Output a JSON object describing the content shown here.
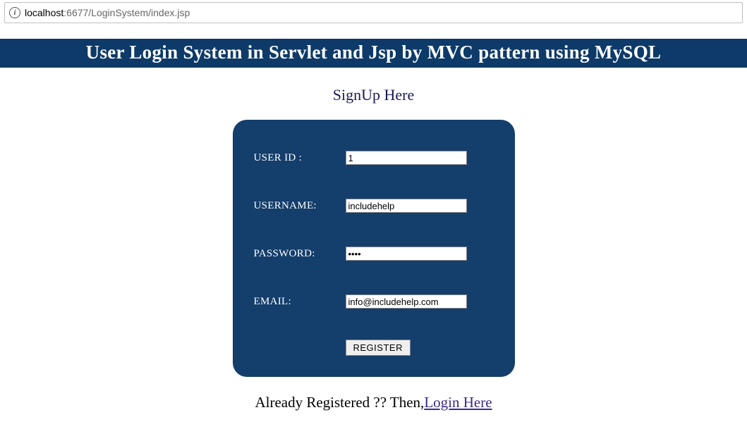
{
  "browser": {
    "url_host": "localhost",
    "url_path": ":6677/LoginSystem/index.jsp"
  },
  "banner": {
    "title": "User Login System in Servlet and Jsp by MVC pattern using MySQL",
    "background_color": "#0d3a68",
    "text_color": "#ffffff"
  },
  "heading": {
    "text": "SignUp Here",
    "color": "#1a1a52"
  },
  "form_card": {
    "background_color": "#143e6b",
    "border_radius": 20
  },
  "form": {
    "user_id": {
      "label": "USER ID :",
      "value": "1"
    },
    "username": {
      "label": "USERNAME:",
      "value": "includehelp"
    },
    "password": {
      "label": "PASSWORD:",
      "value": "abcd"
    },
    "email": {
      "label": "EMAIL:",
      "value": "info@includehelp.com"
    },
    "register_button": "REGISTER"
  },
  "footer": {
    "prefix": "Already Registered ?? Then,",
    "link_text": "Login Here"
  }
}
